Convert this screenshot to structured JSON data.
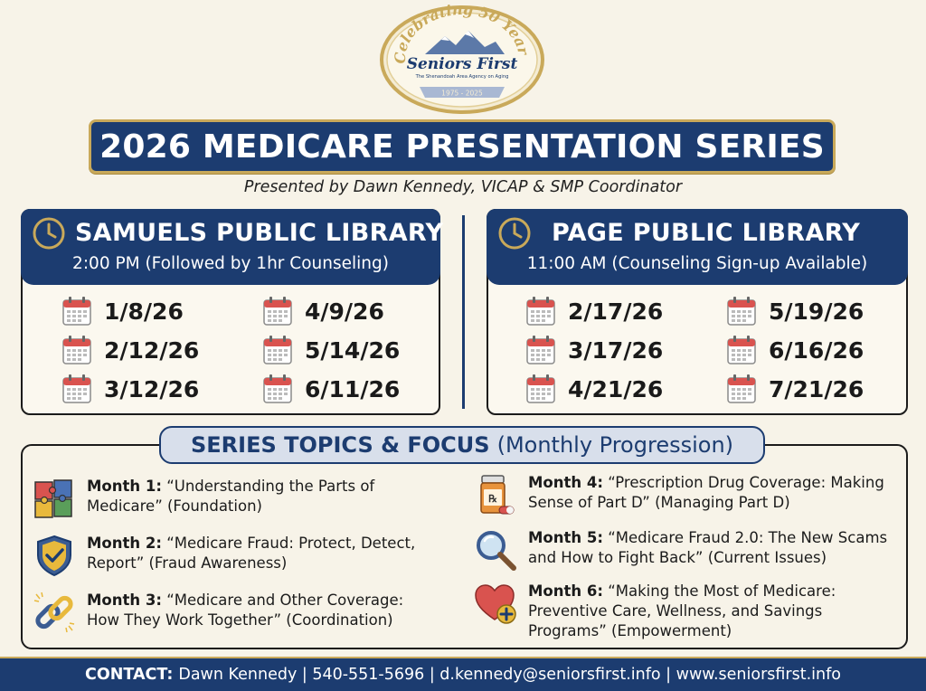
{
  "logo": {
    "arc_text": "Celebrating 50 Years",
    "name": "Seniors First",
    "tagline": "The Shenandoah Area Agency on Aging",
    "years": "1975 - 2025",
    "colors": {
      "gold": "#c9a95a",
      "navy": "#1c3c70"
    }
  },
  "title": "2026 MEDICARE PRESENTATION SERIES",
  "subtitle": "Presented by Dawn Kennedy, VICAP & SMP Coordinator",
  "libraries": [
    {
      "name": "SAMUELS PUBLIC LIBRARY",
      "time": "2:00 PM (Followed by 1hr Counseling)",
      "dates": [
        "1/8/26",
        "2/12/26",
        "3/12/26",
        "4/9/26",
        "5/14/26",
        "6/11/26"
      ]
    },
    {
      "name": "PAGE PUBLIC LIBRARY",
      "time": "11:00 AM (Counseling Sign-up Available)",
      "dates": [
        "2/17/26",
        "3/17/26",
        "4/21/26",
        "5/19/26",
        "6/16/26",
        "7/21/26"
      ]
    }
  ],
  "topics": {
    "heading_bold": "SERIES TOPICS & FOCUS",
    "heading_regular": "(Monthly Progression)",
    "items": [
      {
        "month": "Month 1:",
        "text": "“Understanding the Parts of Medicare” (Foundation)",
        "icon": "puzzle-icon"
      },
      {
        "month": "Month 2:",
        "text": "“Medicare Fraud: Protect, Detect, Report” (Fraud Awareness)",
        "icon": "shield-check-icon"
      },
      {
        "month": "Month 3:",
        "text": "“Medicare and Other Coverage: How They Work Together” (Coordination)",
        "icon": "chain-link-icon"
      },
      {
        "month": "Month 4:",
        "text": "“Prescription Drug Coverage: Making Sense of Part D” (Managing Part D)",
        "icon": "pill-bottle-icon"
      },
      {
        "month": "Month 5:",
        "text": "“Medicare Fraud 2.0: The New Scams and How to Fight Back” (Current Issues)",
        "icon": "magnifier-icon"
      },
      {
        "month": "Month 6:",
        "text": "“Making the Most of Medicare: Preventive Care, Wellness, and Savings Programs” (Empowerment)",
        "icon": "heart-plus-icon"
      }
    ]
  },
  "contact": {
    "label": "CONTACT:",
    "text": "Dawn Kennedy | 540-551-5696 | d.kennedy@seniorsfirst.info | www.seniorsfirst.info"
  },
  "colors": {
    "navy": "#1c3c70",
    "gold": "#c9a95a",
    "background": "#f7f3e8",
    "calendar_red": "#d9534f"
  }
}
